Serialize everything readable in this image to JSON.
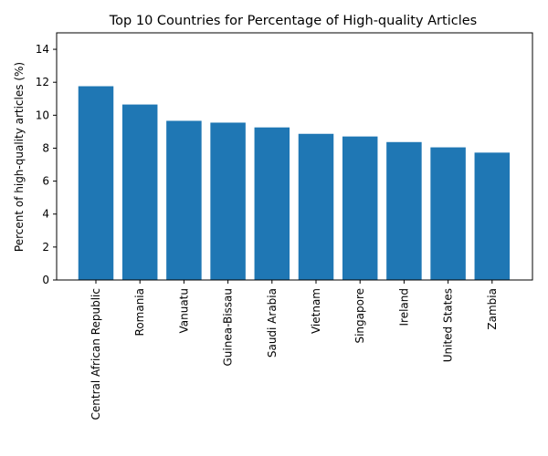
{
  "chart_data": {
    "type": "bar",
    "title": "Top 10 Countries for Percentage of High-quality Articles",
    "xlabel": "",
    "ylabel": "Percent of high-quality articles (%)",
    "categories": [
      "Central African Republic",
      "Romania",
      "Vanuatu",
      "Guinea-Bissau",
      "Saudi Arabia",
      "Vietnam",
      "Singapore",
      "Ireland",
      "United States",
      "Zambia"
    ],
    "values": [
      11.76,
      10.65,
      9.66,
      9.55,
      9.26,
      8.87,
      8.71,
      8.37,
      8.05,
      7.73
    ],
    "ylim": [
      0,
      15
    ],
    "yticks": [
      0,
      2,
      4,
      6,
      8,
      10,
      12,
      14
    ],
    "bar_color": "#1f77b4",
    "grid": false,
    "legend": "none"
  }
}
